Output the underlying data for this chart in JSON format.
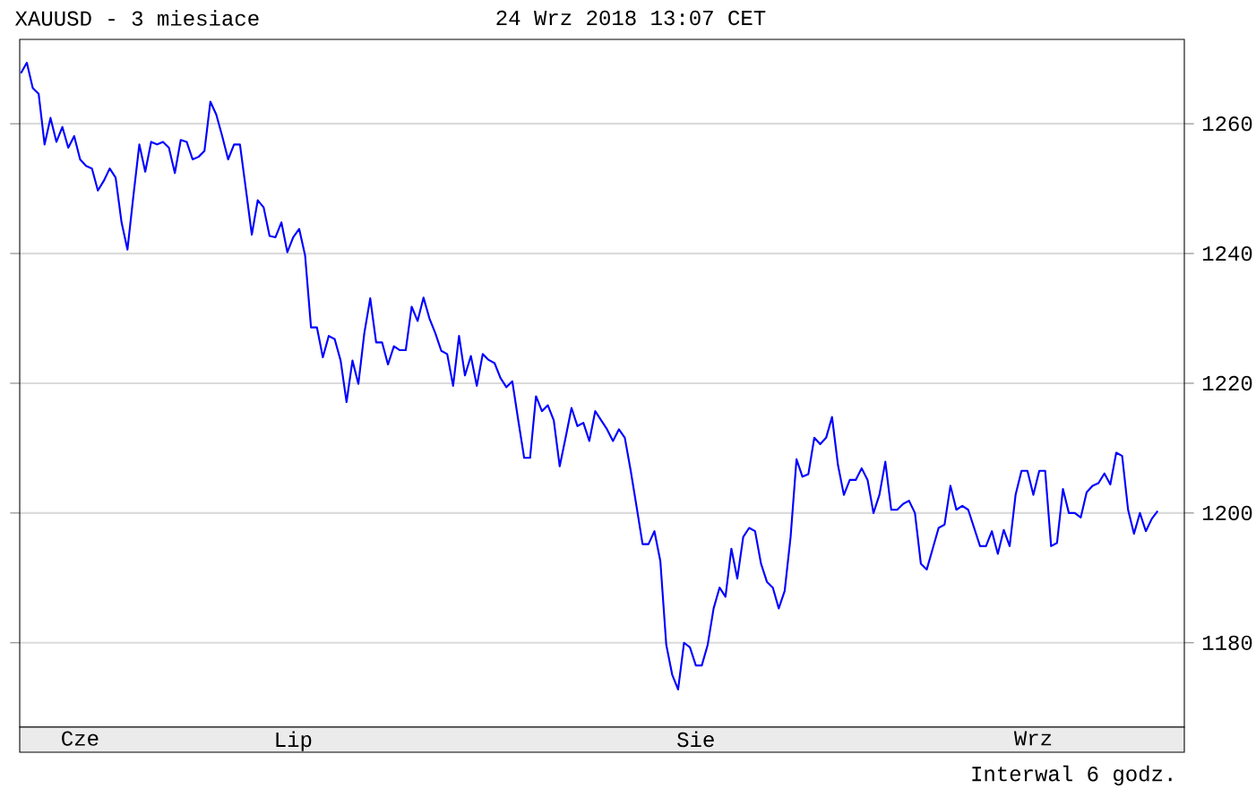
{
  "chart_data": {
    "type": "line",
    "title": "XAUUSD - 3 miesiace",
    "subtitle": "24 Wrz 2018 13:07 CET",
    "annotations": [
      "Interwal 6 godz."
    ],
    "categories": [
      null,
      null,
      null,
      null,
      null,
      null,
      null,
      null,
      null,
      null,
      "Cze",
      null,
      null,
      null,
      null,
      null,
      null,
      null,
      null,
      null,
      null,
      null,
      null,
      null,
      null,
      null,
      null,
      null,
      null,
      null,
      null,
      null,
      null,
      null,
      null,
      null,
      null,
      null,
      null,
      null,
      null,
      null,
      null,
      null,
      null,
      null,
      "Lip",
      null,
      null,
      null,
      null,
      null,
      null,
      null,
      null,
      null,
      null,
      null,
      null,
      null,
      null,
      null,
      null,
      null,
      null,
      null,
      null,
      null,
      null,
      null,
      null,
      null,
      null,
      null,
      null,
      null,
      null,
      null,
      null,
      null,
      null,
      null,
      null,
      null,
      null,
      null,
      null,
      null,
      null,
      null,
      null,
      null,
      null,
      null,
      null,
      null,
      null,
      null,
      null,
      null,
      null,
      null,
      null,
      null,
      null,
      null,
      null,
      null,
      null,
      null,
      null,
      null,
      null,
      null,
      "Sie",
      null,
      null,
      null,
      null,
      null,
      null,
      null,
      null,
      null,
      null,
      null,
      null,
      null,
      null,
      null,
      null,
      null,
      null,
      null,
      null,
      null,
      null,
      null,
      null,
      null,
      null,
      null,
      null,
      null,
      null,
      null,
      null,
      null,
      null,
      null,
      null,
      null,
      null,
      null,
      null,
      null,
      null,
      null,
      null,
      null,
      null,
      null,
      null,
      null,
      null,
      null,
      null,
      null,
      null,
      null,
      null,
      "Wrz",
      null,
      null,
      null,
      null,
      null,
      null,
      null,
      null,
      null,
      null,
      null,
      null,
      null,
      null,
      null,
      null,
      null,
      null,
      null,
      null,
      null
    ],
    "series": [
      {
        "color": "#0000ff",
        "values": [
          1267.8,
          1269.4,
          1265.5,
          1264.6,
          1256.8,
          1260.9,
          1257.2,
          1259.5,
          1256.3,
          1258.1,
          1254.5,
          1253.5,
          1253.1,
          1249.7,
          1251.2,
          1253.1,
          1251.7,
          1244.8,
          1240.6,
          1248.9,
          1256.8,
          1252.6,
          1257.2,
          1256.8,
          1257.2,
          1256.3,
          1252.4,
          1257.5,
          1257.2,
          1254.5,
          1254.9,
          1255.8,
          1263.4,
          1261.4,
          1258.1,
          1254.5,
          1256.8,
          1256.8,
          1249.9,
          1242.9,
          1248.2,
          1247.1,
          1242.7,
          1242.5,
          1244.8,
          1240.2,
          1242.5,
          1243.8,
          1239.7,
          1228.6,
          1228.6,
          1224.0,
          1227.3,
          1226.8,
          1223.5,
          1217.1,
          1223.5,
          1219.9,
          1227.7,
          1233.1,
          1226.3,
          1226.3,
          1222.9,
          1225.7,
          1225.1,
          1225.1,
          1231.8,
          1229.6,
          1233.2,
          1230.0,
          1227.7,
          1225.0,
          1224.5,
          1219.6,
          1227.3,
          1221.2,
          1224.2,
          1219.6,
          1224.5,
          1223.6,
          1223.1,
          1220.8,
          1219.4,
          1220.3,
          1214.3,
          1208.5,
          1208.5,
          1218.0,
          1215.7,
          1216.6,
          1214.3,
          1207.2,
          1211.6,
          1216.2,
          1213.4,
          1213.9,
          1211.1,
          1215.7,
          1214.3,
          1212.9,
          1211.1,
          1212.9,
          1211.6,
          1206.5,
          1200.9,
          1195.2,
          1195.2,
          1197.2,
          1192.6,
          1179.7,
          1175.1,
          1172.8,
          1180.0,
          1179.3,
          1176.5,
          1176.5,
          1179.7,
          1185.3,
          1188.5,
          1187.1,
          1194.5,
          1189.9,
          1196.3,
          1197.7,
          1197.2,
          1192.2,
          1189.4,
          1188.5,
          1185.3,
          1188.0,
          1196.3,
          1208.3,
          1205.6,
          1206.0,
          1211.6,
          1210.6,
          1211.6,
          1214.8,
          1207.4,
          1202.8,
          1205.1,
          1205.1,
          1206.9,
          1205.1,
          1200.0,
          1202.8,
          1207.9,
          1200.5,
          1200.5,
          1201.4,
          1201.9,
          1200.0,
          1192.2,
          1191.3,
          1194.5,
          1197.7,
          1198.2,
          1204.2,
          1200.5,
          1201.1,
          1200.5,
          1197.7,
          1194.9,
          1194.9,
          1197.2,
          1193.7,
          1197.4,
          1194.9,
          1202.8,
          1206.5,
          1206.5,
          1202.8,
          1206.5,
          1206.5,
          1194.9,
          1195.4,
          1203.7,
          1200.0,
          1200.0,
          1199.3,
          1203.2,
          1204.2,
          1204.6,
          1206.1,
          1204.4,
          1209.3,
          1208.8,
          1200.5,
          1196.8,
          1200.0,
          1197.2,
          1199.1,
          1200.3
        ]
      }
    ],
    "ylim": [
      1167,
      1273
    ],
    "yticks": [
      1180,
      1200,
      1220,
      1240,
      1260
    ],
    "grid": "y"
  }
}
